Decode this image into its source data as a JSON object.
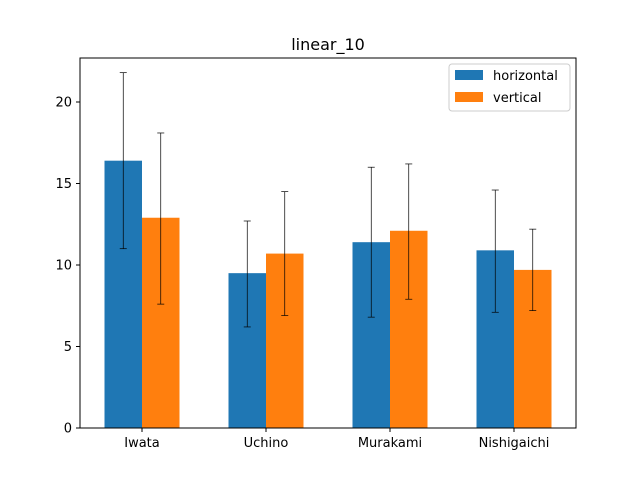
{
  "chart_data": {
    "type": "bar",
    "title": "linear_10",
    "xlabel": "",
    "ylabel": "",
    "categories": [
      "Iwata",
      "Uchino",
      "Murakami",
      "Nishigaichi"
    ],
    "series": [
      {
        "name": "horizontal",
        "color": "#1f77b4",
        "values": [
          16.4,
          9.5,
          11.4,
          10.9
        ],
        "err_low": [
          11.0,
          6.2,
          6.8,
          7.1
        ],
        "err_high": [
          21.8,
          12.7,
          16.0,
          14.6
        ]
      },
      {
        "name": "vertical",
        "color": "#ff7f0e",
        "values": [
          12.9,
          10.7,
          12.1,
          9.7
        ],
        "err_low": [
          7.6,
          6.9,
          7.9,
          7.2
        ],
        "err_high": [
          18.1,
          14.5,
          16.2,
          12.2
        ]
      }
    ],
    "ylim": [
      0,
      22.7
    ],
    "yticks": [
      0,
      5,
      10,
      15,
      20
    ],
    "grid": false,
    "legend": "top-right"
  }
}
